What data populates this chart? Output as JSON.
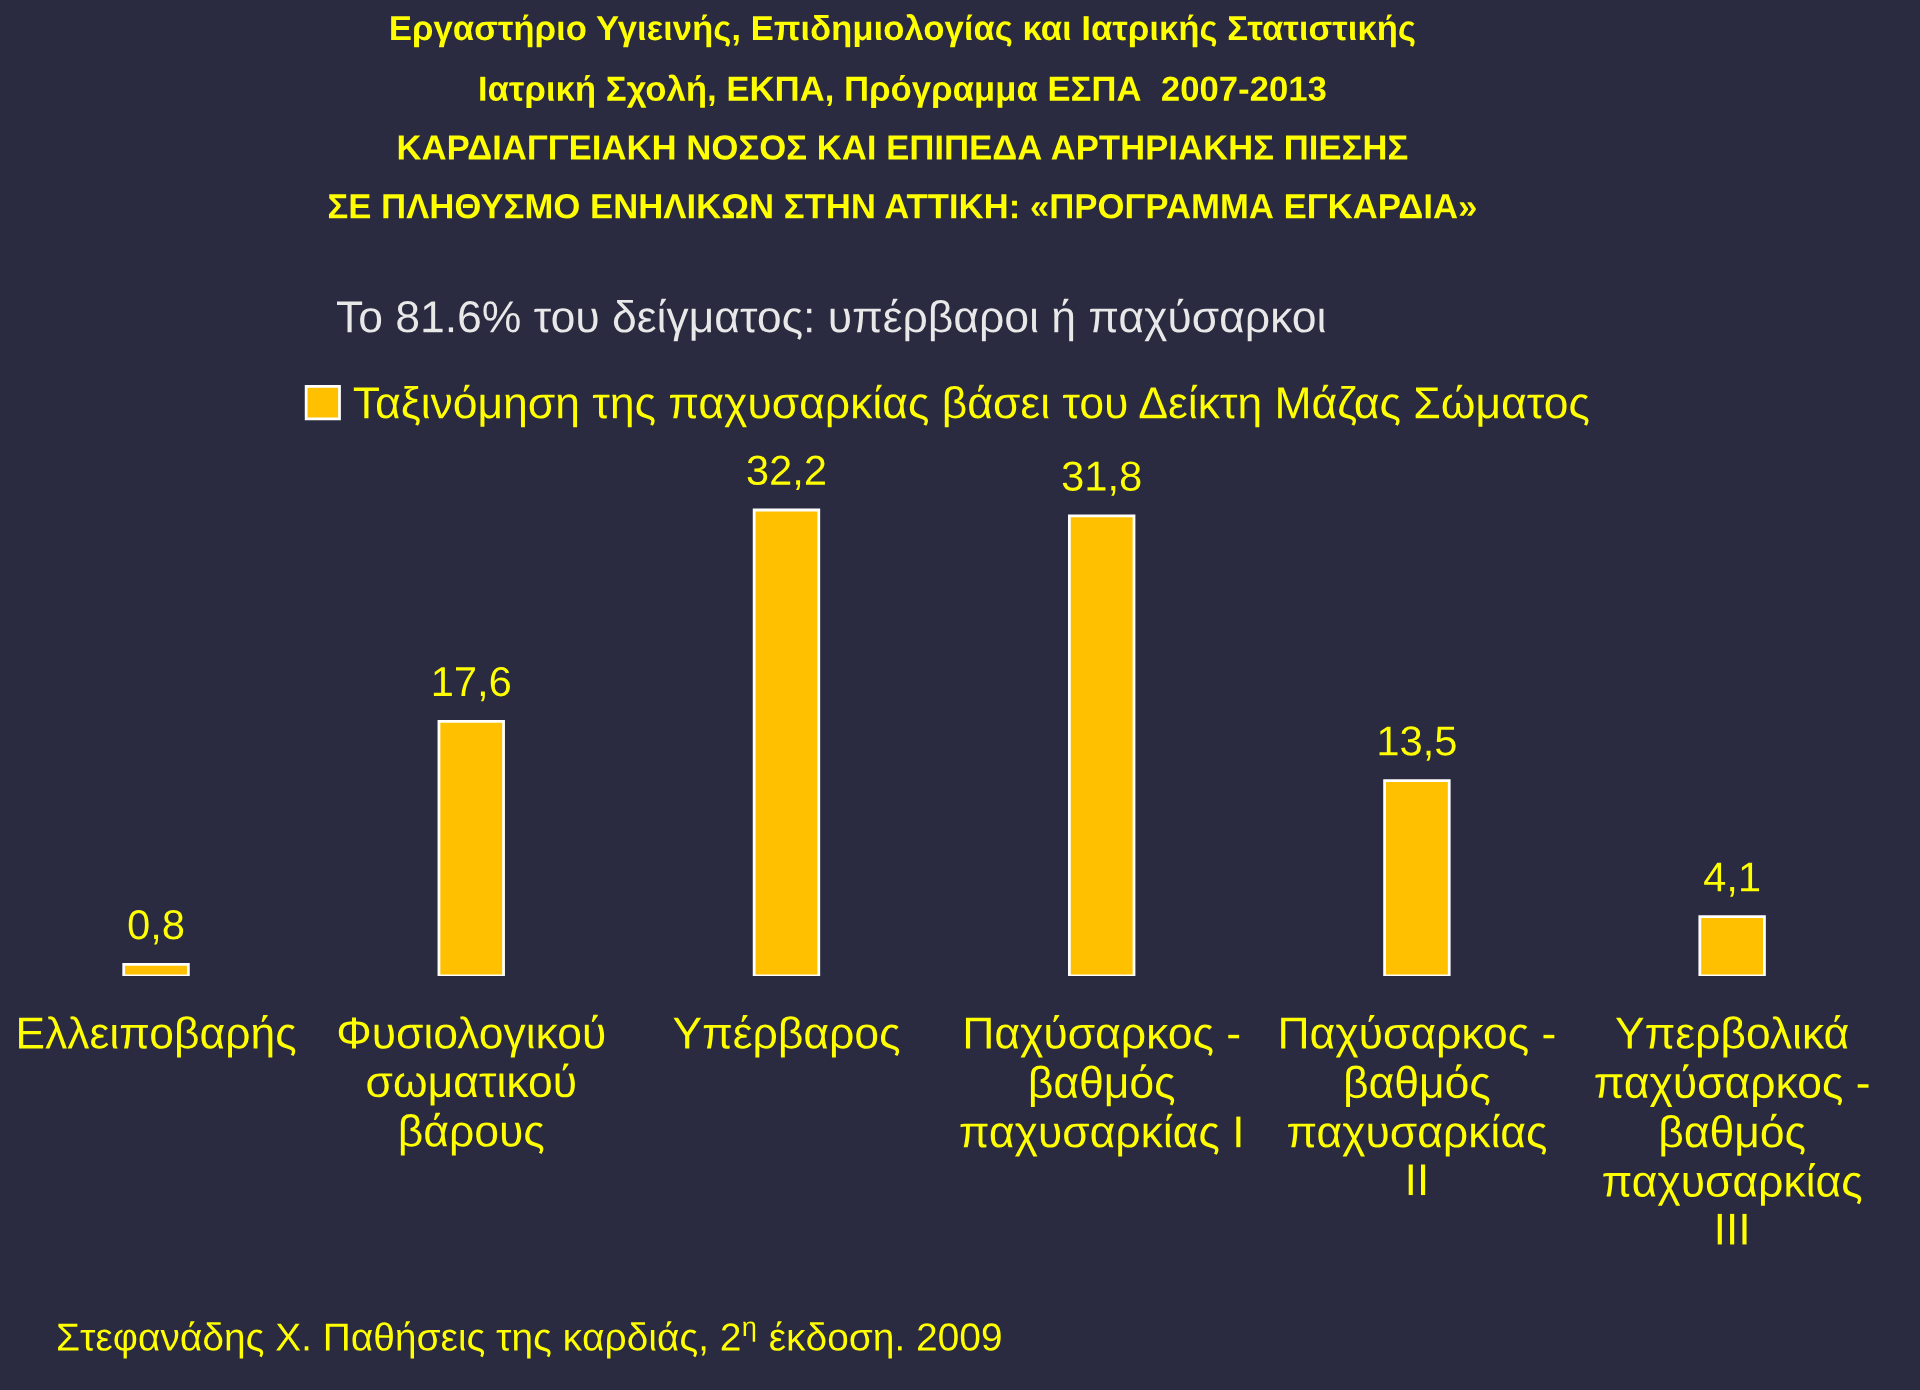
{
  "chart_data": {
    "type": "bar",
    "title": "Εργαστήριο Υγιεινής, Επιδημιολογίας και Ιατρικής Στατιστικής\nΙατρική Σχολή, ΕΚΠΑ, Πρόγραμμα ΕΣΠΑ  2007-2013\nΚΑΡΔΙΑΓΓΕΙΑΚΗ ΝΟΣΟΣ ΚΑΙ ΕΠΙΠΕΔΑ ΑΡΤΗΡΙΑΚΗΣ ΠΙΕΣΗΣ\nΣΕ ΠΛΗΘΥΣΜΟ ΕΝΗΛΙΚΩΝ ΣΤΗΝ ΑΤΤΙΚΗ: «ΠΡΟΓΡΑΜΜΑ ΕΓΚΑΡΔΙΑ»",
    "subtitle": "Το 81.6% του δείγματος: υπέρβαροι ή παχύσαρκοι",
    "categories": [
      "Ελλειποβαρής",
      "Φυσιολογικού\nσωματικού\nβάρους",
      "Υπέρβαρος",
      "Παχύσαρκος -\nβαθμός\nπαχυσαρκίας I",
      "Παχύσαρκος -\nβαθμός\nπαχυσαρκίας\nII",
      "Υπερβολικά\nπαχύσαρκος -\nβαθμός\nπαχυσαρκίας\nIII"
    ],
    "series": [
      {
        "name": "Ταξινόμηση της παχυσαρκίας βάσει του Δείκτη Μάζας Σώματος",
        "color": "#ffc000",
        "values": [
          0.8,
          17.6,
          32.2,
          31.8,
          13.5,
          4.1
        ],
        "value_labels": [
          "0,8",
          "17,6",
          "32,2",
          "31,8",
          "13,5",
          "4,1"
        ]
      }
    ],
    "legend": "top",
    "tick_labels": "x",
    "annotations": [
      "Στεφανάδης Χ. Παθήσεις της καρδιάς, 2$^{η}$ έκδοση. 2009"
    ]
  }
}
